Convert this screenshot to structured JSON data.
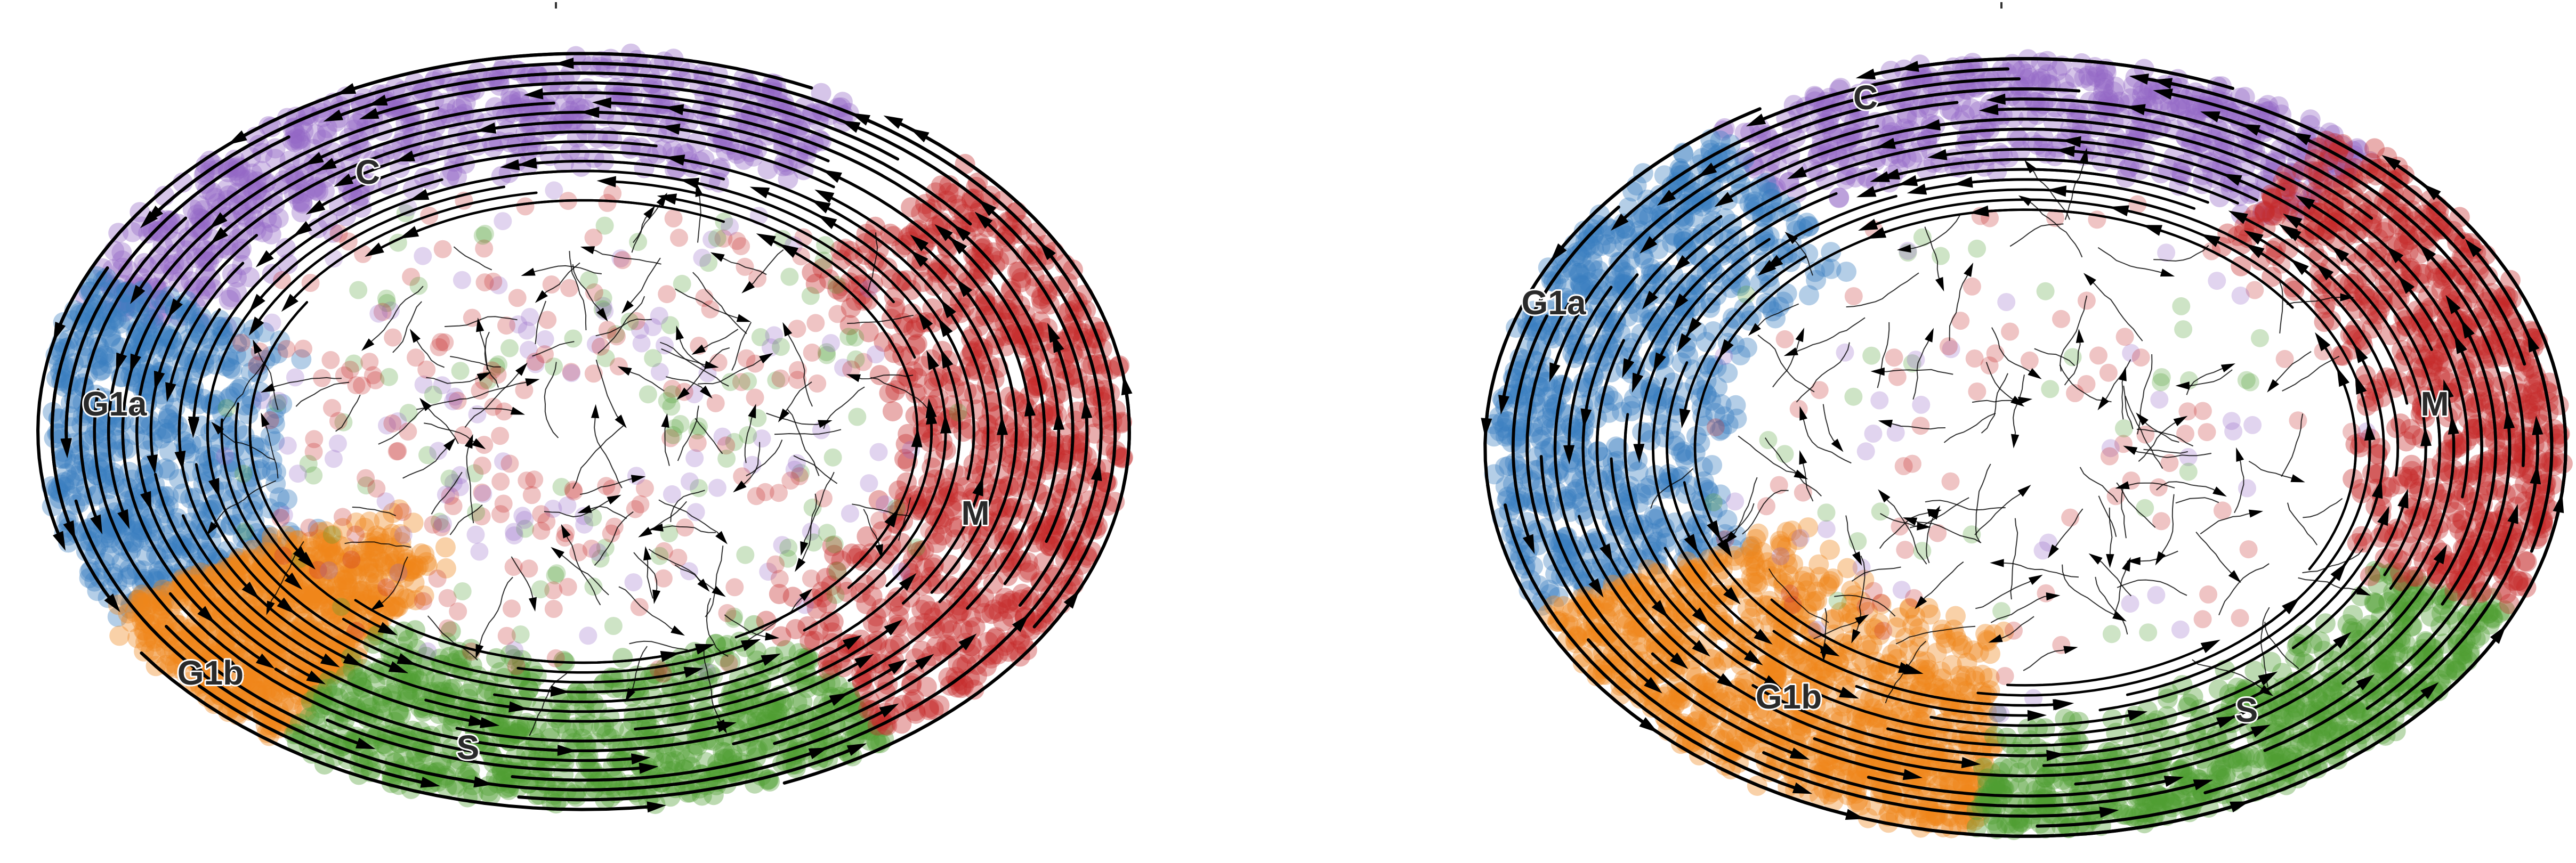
{
  "figure": {
    "background": "#ffffff",
    "cluster_colors": {
      "G1a": "#3b7dc0",
      "G1b": "#f0861a",
      "S": "#4e9e33",
      "M": "#c42a2a",
      "C": "#9466c4"
    },
    "stream_color": "#000000",
    "panels": [
      {
        "id": "left",
        "labels": {
          "C": "C",
          "G1a": "G1a",
          "G1b": "G1b",
          "S": "S",
          "M": "M"
        }
      },
      {
        "id": "right",
        "labels": {
          "C": "C",
          "G1a": "G1a",
          "G1b": "G1b",
          "S": "S",
          "M": "M"
        }
      }
    ]
  }
}
